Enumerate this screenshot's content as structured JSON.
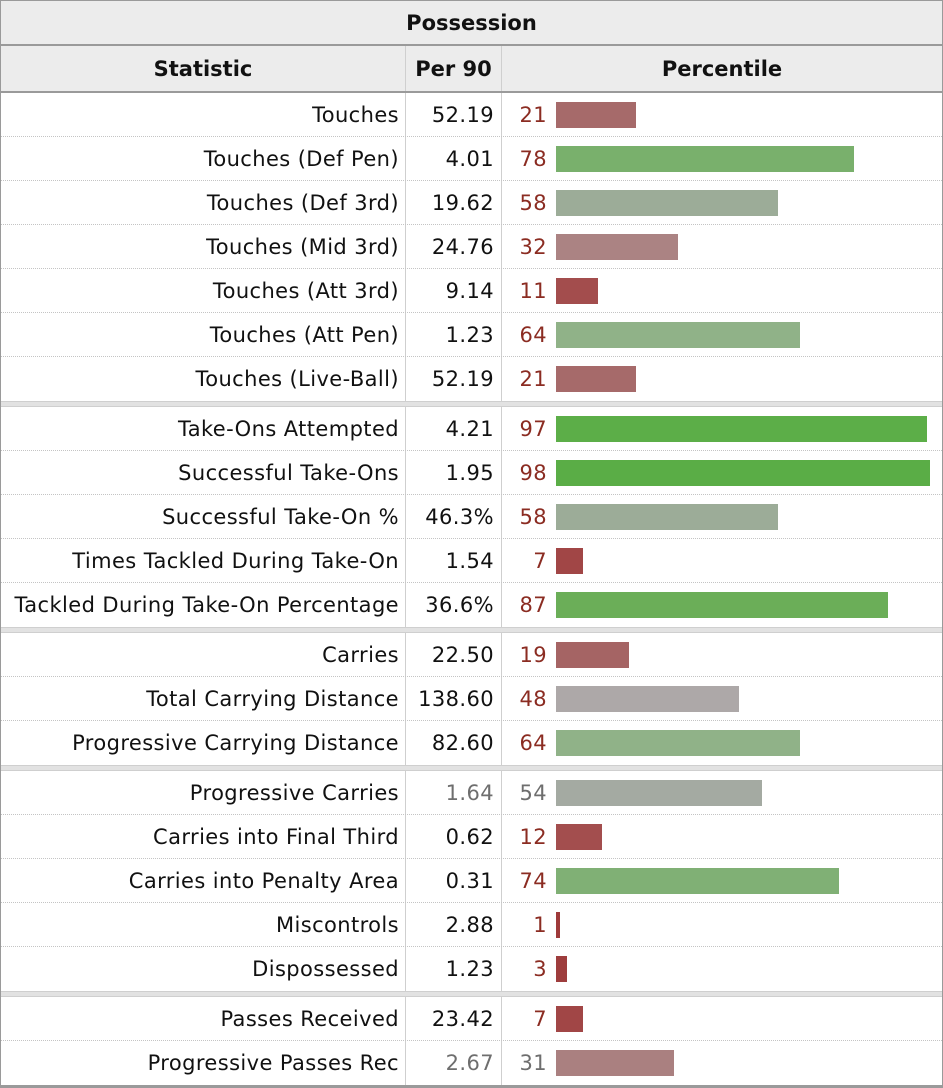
{
  "table": {
    "caption": "Possession",
    "headers": {
      "statistic": "Statistic",
      "per90": "Per 90",
      "percentile": "Percentile"
    }
  },
  "groups": [
    {
      "rows": [
        {
          "stat": "Touches",
          "per90": "52.19",
          "pct": 21,
          "bar_color": "#a66a6a"
        },
        {
          "stat": "Touches (Def Pen)",
          "per90": "4.01",
          "pct": 78,
          "bar_color": "#79b06c"
        },
        {
          "stat": "Touches (Def 3rd)",
          "per90": "19.62",
          "pct": 58,
          "bar_color": "#9cac98"
        },
        {
          "stat": "Touches (Mid 3rd)",
          "per90": "24.76",
          "pct": 32,
          "bar_color": "#ab8383"
        },
        {
          "stat": "Touches (Att 3rd)",
          "per90": "9.14",
          "pct": 11,
          "bar_color": "#a34d4d"
        },
        {
          "stat": "Touches (Att Pen)",
          "per90": "1.23",
          "pct": 64,
          "bar_color": "#90b288"
        },
        {
          "stat": "Touches (Live-Ball)",
          "per90": "52.19",
          "pct": 21,
          "bar_color": "#a66a6a"
        }
      ]
    },
    {
      "rows": [
        {
          "stat": "Take-Ons Attempted",
          "per90": "4.21",
          "pct": 97,
          "bar_color": "#5cae48"
        },
        {
          "stat": "Successful Take-Ons",
          "per90": "1.95",
          "pct": 98,
          "bar_color": "#5aad46"
        },
        {
          "stat": "Successful Take-On %",
          "per90": "46.3%",
          "pct": 58,
          "bar_color": "#9cac98"
        },
        {
          "stat": "Times Tackled During Take-On",
          "per90": "1.54",
          "pct": 7,
          "bar_color": "#a14646"
        },
        {
          "stat": "Tackled During Take-On Percentage",
          "per90": "36.6%",
          "pct": 87,
          "bar_color": "#6bae58"
        }
      ]
    },
    {
      "rows": [
        {
          "stat": "Carries",
          "per90": "22.50",
          "pct": 19,
          "bar_color": "#a56464"
        },
        {
          "stat": "Total Carrying Distance",
          "per90": "138.60",
          "pct": 48,
          "bar_color": "#ada8a8"
        },
        {
          "stat": "Progressive Carrying Distance",
          "per90": "82.60",
          "pct": 64,
          "bar_color": "#90b288"
        }
      ]
    },
    {
      "rows": [
        {
          "stat": "Progressive Carries",
          "per90": "1.64",
          "pct": 54,
          "bar_color": "#a4aaa2",
          "muted": true
        },
        {
          "stat": "Carries into Final Third",
          "per90": "0.62",
          "pct": 12,
          "bar_color": "#a34e4e"
        },
        {
          "stat": "Carries into Penalty Area",
          "per90": "0.31",
          "pct": 74,
          "bar_color": "#80b075"
        },
        {
          "stat": "Miscontrols",
          "per90": "2.88",
          "pct": 1,
          "bar_color": "#9e3a3a"
        },
        {
          "stat": "Dispossessed",
          "per90": "1.23",
          "pct": 3,
          "bar_color": "#9e3d3d"
        }
      ]
    },
    {
      "rows": [
        {
          "stat": "Passes Received",
          "per90": "23.42",
          "pct": 7,
          "bar_color": "#a14646"
        },
        {
          "stat": "Progressive Passes Rec",
          "per90": "2.67",
          "pct": 31,
          "bar_color": "#aa8080",
          "muted": true
        }
      ]
    }
  ]
}
